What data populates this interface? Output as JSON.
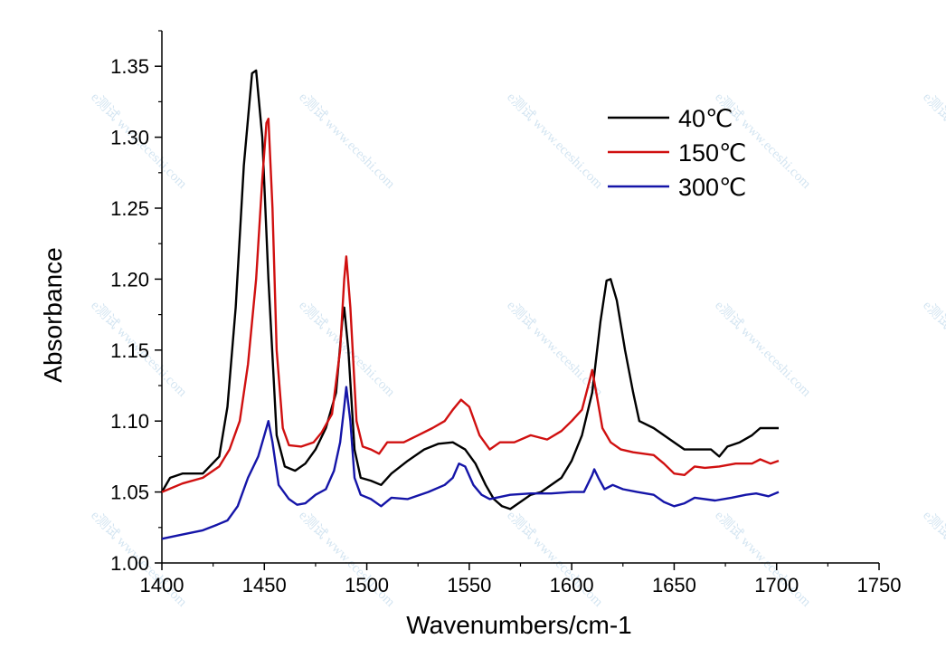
{
  "chart_data": {
    "type": "line",
    "title": "",
    "xlabel": "Wavenumbers/cm-1",
    "ylabel": "Absorbance",
    "xlim": [
      1400,
      1750
    ],
    "ylim": [
      1.0,
      1.375
    ],
    "xticks": [
      1400,
      1450,
      1500,
      1550,
      1600,
      1650,
      1700,
      1750
    ],
    "xtick_labels": [
      "1400",
      "1450",
      "1500",
      "1550",
      "1600",
      "1650",
      "1700",
      "1750"
    ],
    "yticks": [
      1.0,
      1.05,
      1.1,
      1.15,
      1.2,
      1.25,
      1.3,
      1.35
    ],
    "ytick_labels": [
      "1.00",
      "1.05",
      "1.10",
      "1.15",
      "1.20",
      "1.25",
      "1.30",
      "1.35"
    ],
    "grid": false,
    "legend_position": "top-right",
    "series": [
      {
        "name": "40℃",
        "color": "#000000",
        "points": [
          [
            1400,
            1.05
          ],
          [
            1404,
            1.06
          ],
          [
            1410,
            1.063
          ],
          [
            1420,
            1.063
          ],
          [
            1428,
            1.075
          ],
          [
            1432,
            1.11
          ],
          [
            1436,
            1.18
          ],
          [
            1440,
            1.28
          ],
          [
            1444,
            1.345
          ],
          [
            1446,
            1.347
          ],
          [
            1449,
            1.3
          ],
          [
            1452,
            1.2
          ],
          [
            1456,
            1.09
          ],
          [
            1460,
            1.068
          ],
          [
            1465,
            1.065
          ],
          [
            1470,
            1.07
          ],
          [
            1475,
            1.08
          ],
          [
            1480,
            1.095
          ],
          [
            1485,
            1.12
          ],
          [
            1488,
            1.17
          ],
          [
            1489,
            1.18
          ],
          [
            1491,
            1.15
          ],
          [
            1494,
            1.08
          ],
          [
            1497,
            1.06
          ],
          [
            1502,
            1.058
          ],
          [
            1507,
            1.055
          ],
          [
            1512,
            1.063
          ],
          [
            1520,
            1.072
          ],
          [
            1528,
            1.08
          ],
          [
            1535,
            1.084
          ],
          [
            1542,
            1.085
          ],
          [
            1548,
            1.08
          ],
          [
            1553,
            1.07
          ],
          [
            1558,
            1.055
          ],
          [
            1562,
            1.045
          ],
          [
            1566,
            1.04
          ],
          [
            1570,
            1.038
          ],
          [
            1574,
            1.042
          ],
          [
            1580,
            1.048
          ],
          [
            1585,
            1.05
          ],
          [
            1590,
            1.055
          ],
          [
            1595,
            1.06
          ],
          [
            1600,
            1.072
          ],
          [
            1605,
            1.09
          ],
          [
            1610,
            1.12
          ],
          [
            1614,
            1.17
          ],
          [
            1617,
            1.199
          ],
          [
            1619,
            1.2
          ],
          [
            1622,
            1.185
          ],
          [
            1626,
            1.15
          ],
          [
            1630,
            1.12
          ],
          [
            1633,
            1.1
          ],
          [
            1640,
            1.095
          ],
          [
            1645,
            1.09
          ],
          [
            1650,
            1.085
          ],
          [
            1655,
            1.08
          ],
          [
            1660,
            1.08
          ],
          [
            1668,
            1.08
          ],
          [
            1672,
            1.075
          ],
          [
            1676,
            1.082
          ],
          [
            1682,
            1.085
          ],
          [
            1688,
            1.09
          ],
          [
            1692,
            1.095
          ],
          [
            1697,
            1.095
          ],
          [
            1701,
            1.095
          ]
        ]
      },
      {
        "name": "150℃",
        "color": "#d01010",
        "points": [
          [
            1400,
            1.05
          ],
          [
            1410,
            1.056
          ],
          [
            1420,
            1.06
          ],
          [
            1428,
            1.068
          ],
          [
            1433,
            1.08
          ],
          [
            1438,
            1.1
          ],
          [
            1442,
            1.14
          ],
          [
            1446,
            1.2
          ],
          [
            1449,
            1.27
          ],
          [
            1451,
            1.31
          ],
          [
            1452,
            1.313
          ],
          [
            1454,
            1.25
          ],
          [
            1456,
            1.15
          ],
          [
            1459,
            1.095
          ],
          [
            1462,
            1.083
          ],
          [
            1468,
            1.082
          ],
          [
            1474,
            1.085
          ],
          [
            1478,
            1.092
          ],
          [
            1483,
            1.105
          ],
          [
            1487,
            1.15
          ],
          [
            1489,
            1.2
          ],
          [
            1490,
            1.216
          ],
          [
            1492,
            1.18
          ],
          [
            1495,
            1.1
          ],
          [
            1498,
            1.082
          ],
          [
            1502,
            1.08
          ],
          [
            1506,
            1.077
          ],
          [
            1510,
            1.085
          ],
          [
            1518,
            1.085
          ],
          [
            1525,
            1.09
          ],
          [
            1532,
            1.095
          ],
          [
            1538,
            1.1
          ],
          [
            1542,
            1.108
          ],
          [
            1546,
            1.115
          ],
          [
            1550,
            1.11
          ],
          [
            1555,
            1.09
          ],
          [
            1560,
            1.08
          ],
          [
            1565,
            1.085
          ],
          [
            1572,
            1.085
          ],
          [
            1580,
            1.09
          ],
          [
            1588,
            1.087
          ],
          [
            1595,
            1.093
          ],
          [
            1600,
            1.1
          ],
          [
            1605,
            1.108
          ],
          [
            1609,
            1.13
          ],
          [
            1610,
            1.136
          ],
          [
            1612,
            1.12
          ],
          [
            1615,
            1.095
          ],
          [
            1619,
            1.085
          ],
          [
            1624,
            1.08
          ],
          [
            1630,
            1.078
          ],
          [
            1640,
            1.076
          ],
          [
            1645,
            1.07
          ],
          [
            1650,
            1.063
          ],
          [
            1655,
            1.062
          ],
          [
            1660,
            1.068
          ],
          [
            1665,
            1.067
          ],
          [
            1672,
            1.068
          ],
          [
            1680,
            1.07
          ],
          [
            1688,
            1.07
          ],
          [
            1692,
            1.073
          ],
          [
            1697,
            1.07
          ],
          [
            1701,
            1.072
          ]
        ]
      },
      {
        "name": "300℃",
        "color": "#1515a8",
        "points": [
          [
            1400,
            1.017
          ],
          [
            1410,
            1.02
          ],
          [
            1420,
            1.023
          ],
          [
            1427,
            1.027
          ],
          [
            1432,
            1.03
          ],
          [
            1437,
            1.04
          ],
          [
            1442,
            1.06
          ],
          [
            1447,
            1.075
          ],
          [
            1450,
            1.09
          ],
          [
            1452,
            1.1
          ],
          [
            1454,
            1.085
          ],
          [
            1457,
            1.055
          ],
          [
            1462,
            1.045
          ],
          [
            1466,
            1.041
          ],
          [
            1470,
            1.042
          ],
          [
            1475,
            1.048
          ],
          [
            1480,
            1.052
          ],
          [
            1484,
            1.065
          ],
          [
            1487,
            1.085
          ],
          [
            1489,
            1.11
          ],
          [
            1490,
            1.124
          ],
          [
            1492,
            1.1
          ],
          [
            1494,
            1.06
          ],
          [
            1497,
            1.048
          ],
          [
            1502,
            1.045
          ],
          [
            1507,
            1.04
          ],
          [
            1512,
            1.046
          ],
          [
            1520,
            1.045
          ],
          [
            1530,
            1.05
          ],
          [
            1538,
            1.055
          ],
          [
            1542,
            1.06
          ],
          [
            1545,
            1.07
          ],
          [
            1548,
            1.068
          ],
          [
            1552,
            1.055
          ],
          [
            1556,
            1.048
          ],
          [
            1560,
            1.045
          ],
          [
            1570,
            1.048
          ],
          [
            1580,
            1.049
          ],
          [
            1590,
            1.049
          ],
          [
            1600,
            1.05
          ],
          [
            1606,
            1.05
          ],
          [
            1610,
            1.062
          ],
          [
            1611,
            1.066
          ],
          [
            1613,
            1.06
          ],
          [
            1616,
            1.052
          ],
          [
            1620,
            1.055
          ],
          [
            1625,
            1.052
          ],
          [
            1632,
            1.05
          ],
          [
            1640,
            1.048
          ],
          [
            1645,
            1.043
          ],
          [
            1650,
            1.04
          ],
          [
            1655,
            1.042
          ],
          [
            1660,
            1.046
          ],
          [
            1670,
            1.044
          ],
          [
            1678,
            1.046
          ],
          [
            1685,
            1.048
          ],
          [
            1690,
            1.049
          ],
          [
            1696,
            1.047
          ],
          [
            1701,
            1.05
          ]
        ]
      }
    ]
  },
  "watermark": {
    "label": "e测试 www.eceshi.com",
    "color": "#bcd7ea"
  }
}
